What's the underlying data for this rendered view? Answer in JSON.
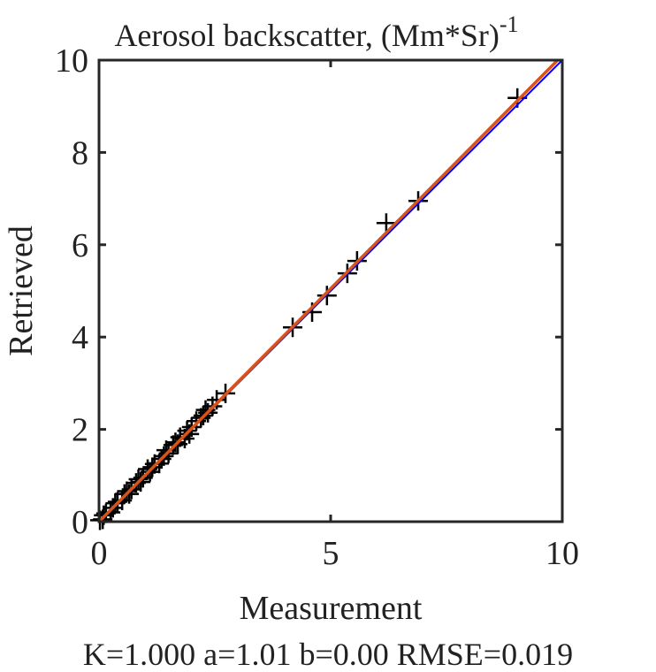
{
  "chart_data": {
    "type": "scatter",
    "title": "Aerosol backscatter, (Mm*Sr)",
    "title_superscript": "-1",
    "xlabel": "Measurement",
    "ylabel": "Retrieved",
    "xlim": [
      0,
      10
    ],
    "ylim": [
      0,
      10
    ],
    "xticks": [
      0,
      5,
      10
    ],
    "yticks": [
      0,
      2,
      4,
      6,
      8,
      10
    ],
    "xtick_labels": [
      "0",
      "5",
      "10"
    ],
    "ytick_labels": [
      "0",
      "2",
      "4",
      "6",
      "8",
      "10"
    ],
    "grid": false,
    "stats_text": "K=1.000 a=1.01 b=0.00 RMSE=0.019",
    "lines": [
      {
        "name": "1:1 line",
        "slope": 1.0,
        "intercept": 0.0,
        "color": "#0000ff"
      },
      {
        "name": "fit",
        "slope": 1.01,
        "intercept": 0.0,
        "color": "#d95319"
      }
    ],
    "marker": "+",
    "marker_color": "#000000",
    "points": [
      [
        9.03,
        9.18
      ],
      [
        6.89,
        6.95
      ],
      [
        6.2,
        6.47
      ],
      [
        5.57,
        5.65
      ],
      [
        5.36,
        5.38
      ],
      [
        4.92,
        4.9
      ],
      [
        4.6,
        4.54
      ],
      [
        4.18,
        4.21
      ],
      [
        2.73,
        2.78
      ],
      [
        2.54,
        2.64
      ],
      [
        2.45,
        2.5
      ],
      [
        2.35,
        2.36
      ],
      [
        2.3,
        2.42
      ],
      [
        2.2,
        2.25
      ],
      [
        2.1,
        2.18
      ],
      [
        2.0,
        2.05
      ],
      [
        1.9,
        1.97
      ],
      [
        1.85,
        1.8
      ],
      [
        1.75,
        1.83
      ],
      [
        1.7,
        1.68
      ],
      [
        1.6,
        1.66
      ],
      [
        1.5,
        1.48
      ],
      [
        1.45,
        1.55
      ],
      [
        1.35,
        1.36
      ],
      [
        1.3,
        1.26
      ],
      [
        1.2,
        1.25
      ],
      [
        1.1,
        1.08
      ],
      [
        1.05,
        1.14
      ],
      [
        0.95,
        0.95
      ],
      [
        0.9,
        0.86
      ],
      [
        0.8,
        0.84
      ],
      [
        0.7,
        0.7
      ],
      [
        0.65,
        0.6
      ],
      [
        0.55,
        0.6
      ],
      [
        0.5,
        0.46
      ],
      [
        0.4,
        0.43
      ],
      [
        0.3,
        0.3
      ],
      [
        0.25,
        0.2
      ],
      [
        0.15,
        0.18
      ],
      [
        0.08,
        0.05
      ],
      [
        0.02,
        0.03
      ],
      [
        0.1,
        0.14
      ],
      [
        0.35,
        0.4
      ],
      [
        0.6,
        0.66
      ],
      [
        0.85,
        0.92
      ],
      [
        1.15,
        1.18
      ],
      [
        1.4,
        1.42
      ],
      [
        1.65,
        1.72
      ],
      [
        1.95,
        1.9
      ],
      [
        2.25,
        2.3
      ]
    ]
  }
}
